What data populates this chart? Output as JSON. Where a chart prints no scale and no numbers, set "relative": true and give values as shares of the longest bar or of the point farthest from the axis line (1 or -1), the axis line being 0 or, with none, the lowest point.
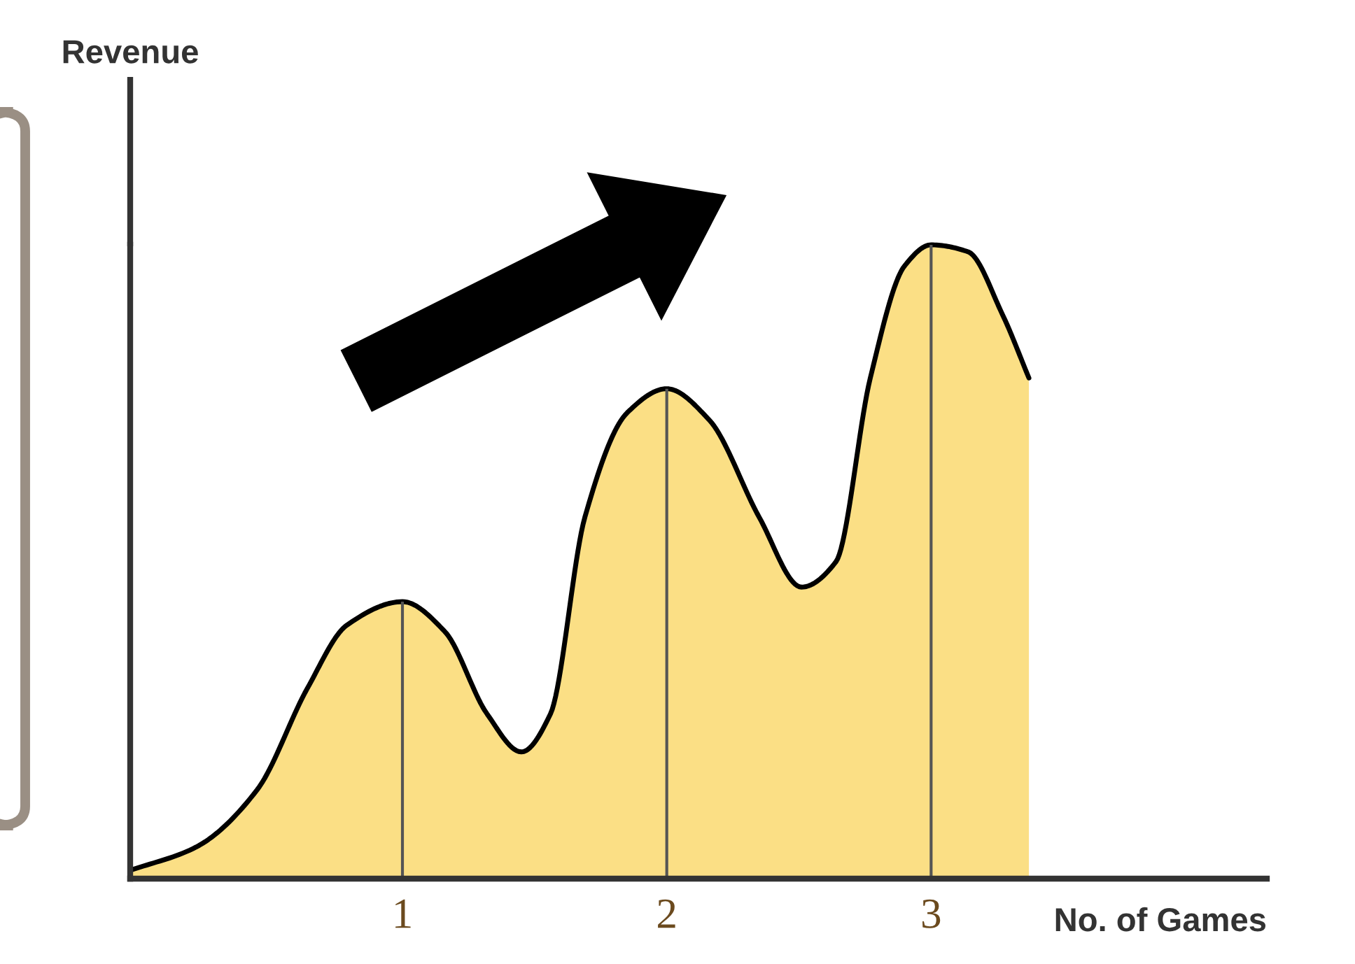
{
  "chart_data": {
    "type": "area",
    "relative": true,
    "xlabel": "No. of Games",
    "xlim": [
      -0.03,
      4.27
    ],
    "xticks": [
      1,
      2,
      3
    ],
    "series": [
      {
        "color": "#fbdf85",
        "x": [
          -0.03,
          0.22,
          0.45,
          0.64,
          0.79,
          1.0,
          1.16,
          1.32,
          1.45,
          1.56,
          1.69,
          1.85,
          2.0,
          2.16,
          2.35,
          2.51,
          2.64,
          2.77,
          2.9,
          3.0,
          3.14,
          3.27,
          3.37
        ],
        "values": [
          0.013,
          0.05,
          0.14,
          0.3,
          0.4,
          0.437,
          0.39,
          0.26,
          0.2,
          0.26,
          0.57,
          0.735,
          0.773,
          0.724,
          0.57,
          0.46,
          0.5,
          0.79,
          0.967,
          1.0,
          0.989,
          0.89,
          0.79
        ]
      }
    ],
    "ref_lines": [
      {
        "axis": "x",
        "value": 1,
        "color": "#555555"
      },
      {
        "axis": "x",
        "value": 2,
        "color": "#555555"
      },
      {
        "axis": "x",
        "value": 3,
        "color": "#555555"
      }
    ],
    "annotations": [
      "Revenue"
    ],
    "grid": false,
    "legend": false
  }
}
